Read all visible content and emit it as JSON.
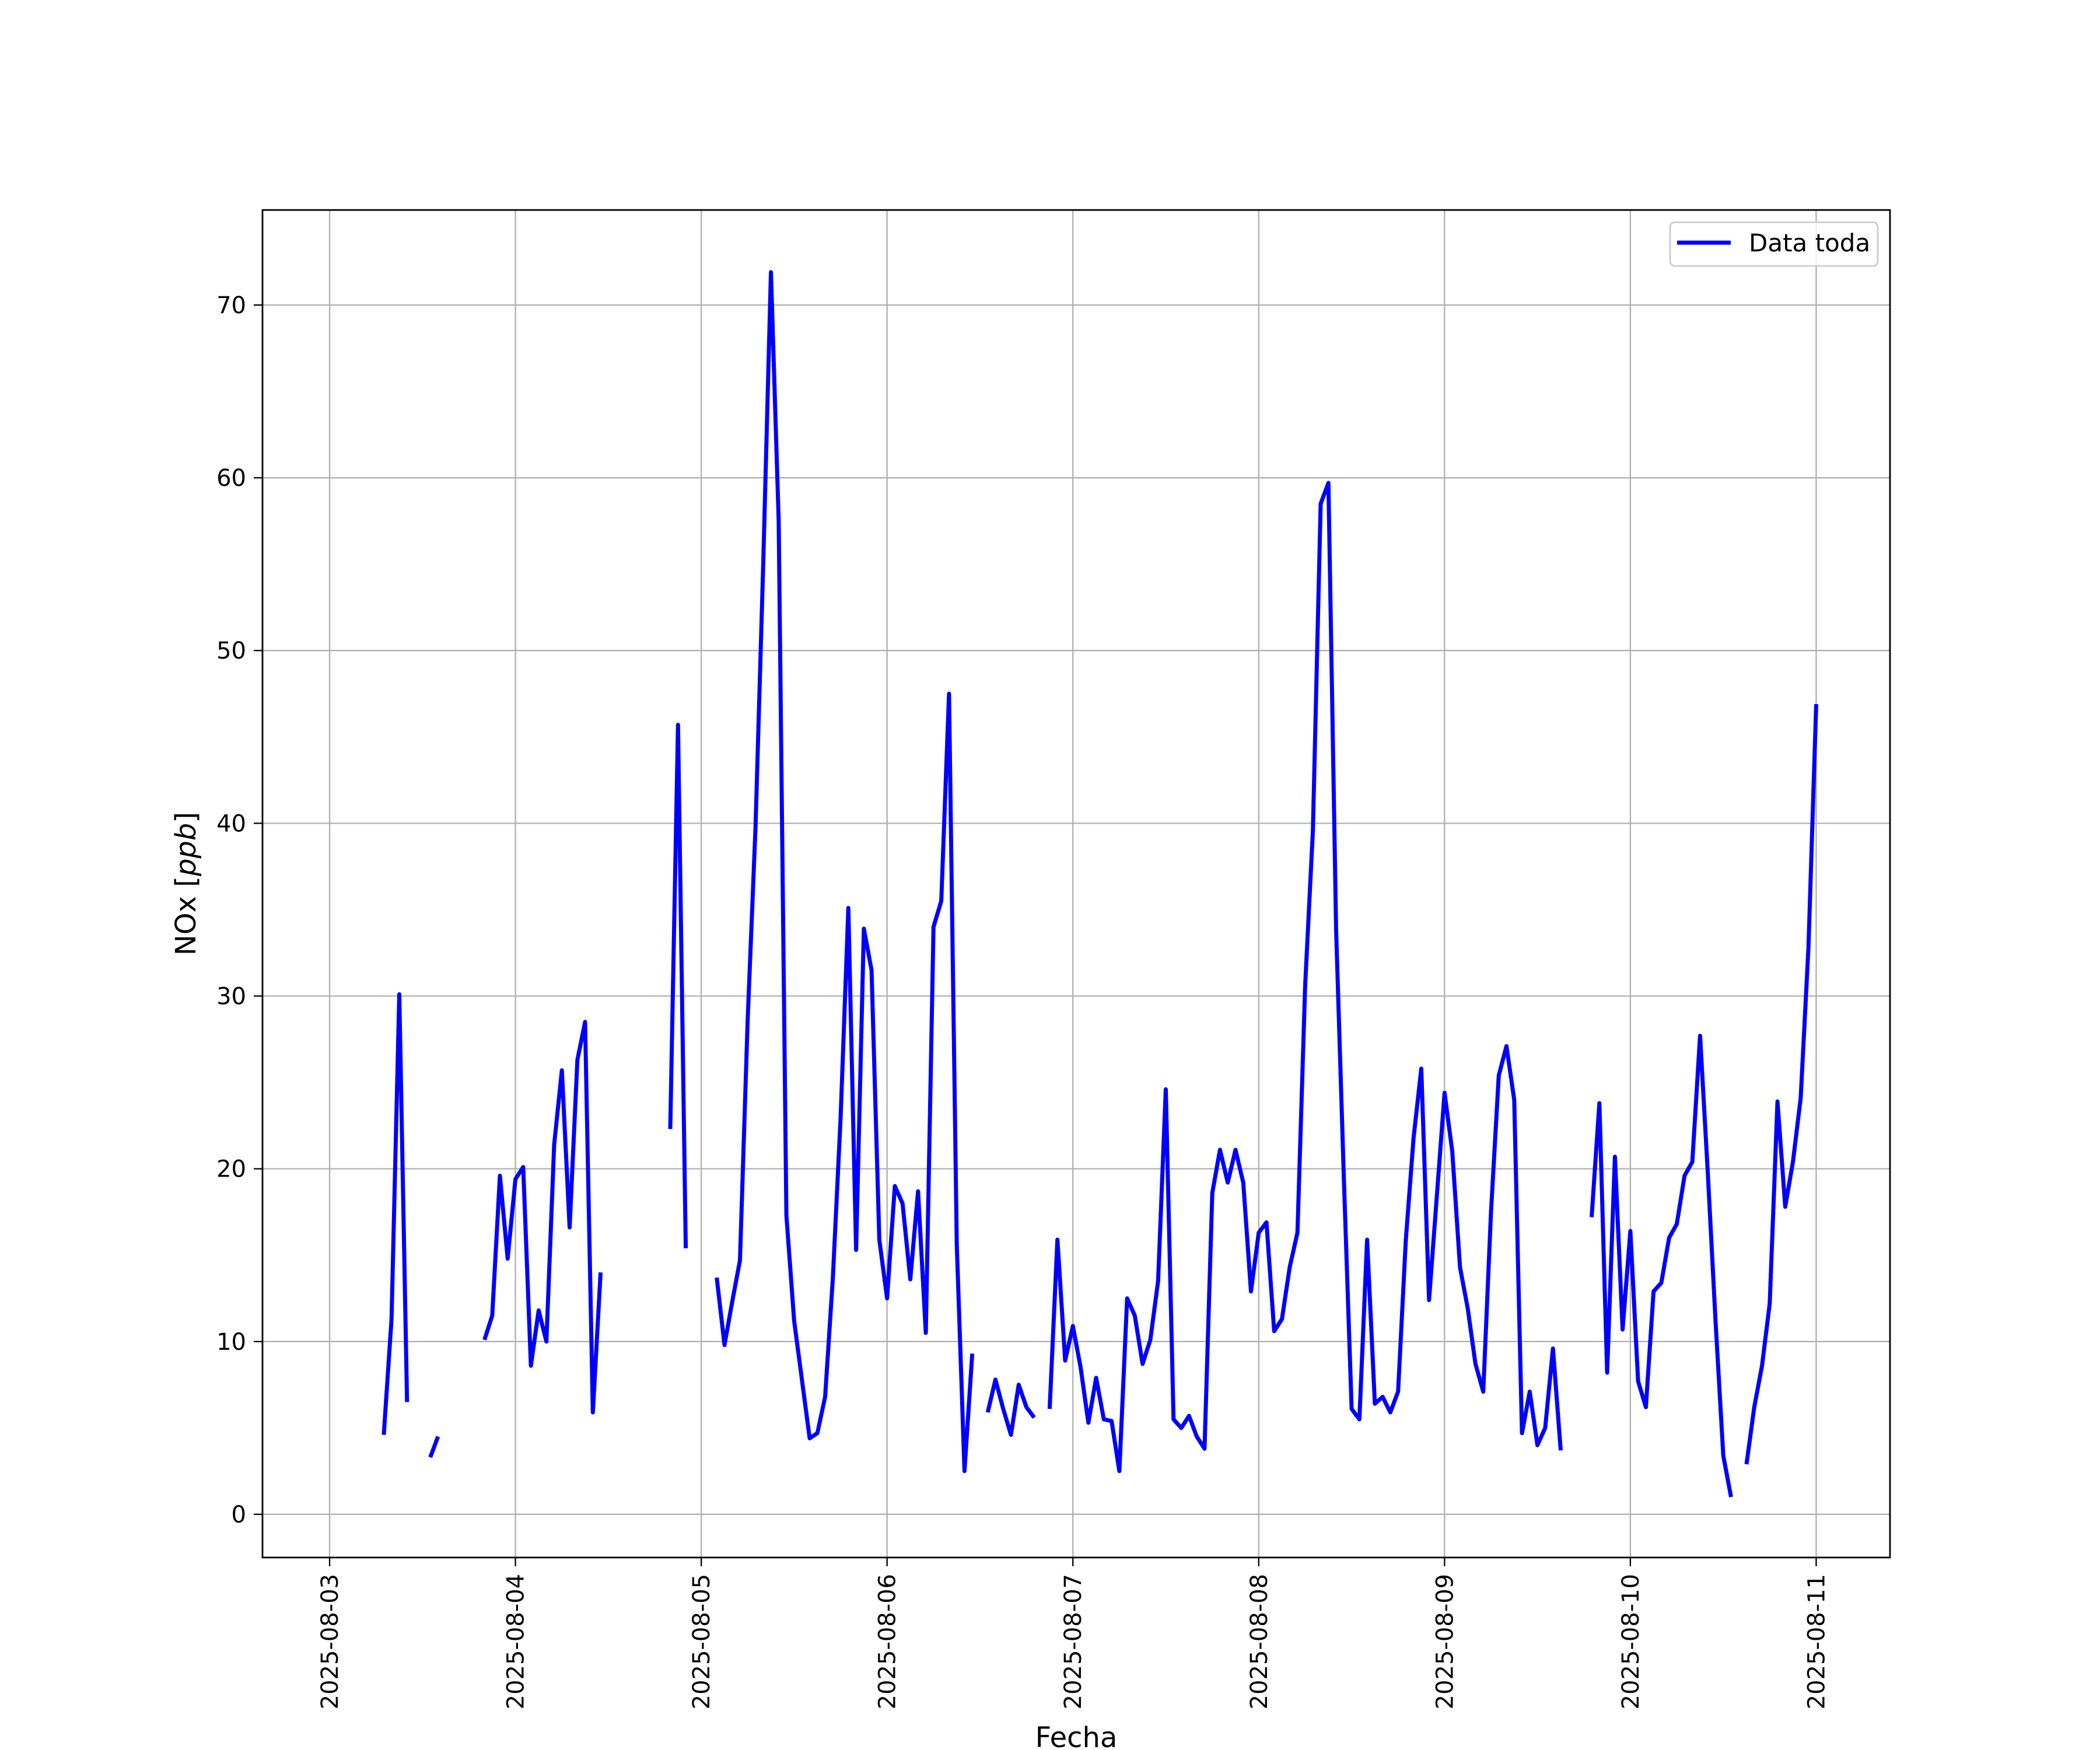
{
  "chart_data": {
    "type": "line",
    "xlabel": "Fecha",
    "ylabel": "NOx [ppb]",
    "ylim": [
      -2.5,
      75.5
    ],
    "xlim": [
      "2025-08-02 15:20",
      "2025-08-11 09:32"
    ],
    "grid": true,
    "legend_placement": "top-right",
    "y_ticks": [
      "0",
      "10",
      "20",
      "30",
      "40",
      "50",
      "60",
      "70"
    ],
    "x_ticks": [
      "2025-08-03",
      "2025-08-04",
      "2025-08-05",
      "2025-08-06",
      "2025-08-07",
      "2025-08-08",
      "2025-08-09",
      "2025-08-10",
      "2025-08-11"
    ],
    "series": [
      {
        "name": "Data toda",
        "color": "#0000ff",
        "points": [
          [
            "2025-08-03 07:00",
            4.6
          ],
          [
            "2025-08-03 08:00",
            11.3
          ],
          [
            "2025-08-03 09:00",
            30.1
          ],
          [
            "2025-08-03 10:00",
            6.5
          ],
          [
            "2025-08-03 13:00",
            3.3
          ],
          [
            "2025-08-03 14:00",
            4.5
          ],
          [
            "2025-08-03 20:00",
            10.1
          ],
          [
            "2025-08-03 21:00",
            11.5
          ],
          [
            "2025-08-03 22:00",
            19.6
          ],
          [
            "2025-08-03 23:00",
            14.8
          ],
          [
            "2025-08-04 00:00",
            19.4
          ],
          [
            "2025-08-04 01:00",
            20.1
          ],
          [
            "2025-08-04 02:00",
            8.6
          ],
          [
            "2025-08-04 03:00",
            11.8
          ],
          [
            "2025-08-04 04:00",
            10.0
          ],
          [
            "2025-08-04 05:00",
            21.4
          ],
          [
            "2025-08-04 06:00",
            25.7
          ],
          [
            "2025-08-04 07:00",
            16.6
          ],
          [
            "2025-08-04 08:00",
            26.3
          ],
          [
            "2025-08-04 09:00",
            28.5
          ],
          [
            "2025-08-04 10:00",
            5.9
          ],
          [
            "2025-08-04 11:00",
            14.0
          ],
          [
            "2025-08-04 20:00",
            22.3
          ],
          [
            "2025-08-04 21:00",
            45.7
          ],
          [
            "2025-08-04 22:00",
            15.4
          ],
          [
            "2025-08-05 02:00",
            13.7
          ],
          [
            "2025-08-05 03:00",
            9.8
          ],
          [
            "2025-08-05 04:00",
            12.3
          ],
          [
            "2025-08-05 05:00",
            14.7
          ],
          [
            "2025-08-05 06:00",
            28.7
          ],
          [
            "2025-08-05 07:00",
            39.7
          ],
          [
            "2025-08-05 08:00",
            54.9
          ],
          [
            "2025-08-05 09:00",
            71.9
          ],
          [
            "2025-08-05 10:00",
            57.5
          ],
          [
            "2025-08-05 11:00",
            17.3
          ],
          [
            "2025-08-05 12:00",
            11.2
          ],
          [
            "2025-08-05 13:00",
            7.8
          ],
          [
            "2025-08-05 14:00",
            4.4
          ],
          [
            "2025-08-05 15:00",
            4.7
          ],
          [
            "2025-08-05 16:00",
            6.8
          ],
          [
            "2025-08-05 17:00",
            13.7
          ],
          [
            "2025-08-05 18:00",
            23.0
          ],
          [
            "2025-08-05 19:00",
            35.1
          ],
          [
            "2025-08-05 20:00",
            15.3
          ],
          [
            "2025-08-05 21:00",
            33.9
          ],
          [
            "2025-08-05 22:00",
            31.5
          ],
          [
            "2025-08-05 23:00",
            15.9
          ],
          [
            "2025-08-06 00:00",
            12.5
          ],
          [
            "2025-08-06 01:00",
            19.0
          ],
          [
            "2025-08-06 02:00",
            18.0
          ],
          [
            "2025-08-06 03:00",
            13.6
          ],
          [
            "2025-08-06 04:00",
            18.7
          ],
          [
            "2025-08-06 05:00",
            10.5
          ],
          [
            "2025-08-06 06:00",
            34.0
          ],
          [
            "2025-08-06 07:00",
            35.5
          ],
          [
            "2025-08-06 08:00",
            47.5
          ],
          [
            "2025-08-06 09:00",
            15.6
          ],
          [
            "2025-08-06 10:00",
            2.5
          ],
          [
            "2025-08-06 11:00",
            9.3
          ],
          [
            "2025-08-06 13:00",
            5.9
          ],
          [
            "2025-08-06 14:00",
            7.8
          ],
          [
            "2025-08-06 15:00",
            6.1
          ],
          [
            "2025-08-06 16:00",
            4.6
          ],
          [
            "2025-08-06 17:00",
            7.5
          ],
          [
            "2025-08-06 18:00",
            6.2
          ],
          [
            "2025-08-06 19:00",
            5.6
          ],
          [
            "2025-08-06 21:00",
            6.1
          ],
          [
            "2025-08-06 22:00",
            15.9
          ],
          [
            "2025-08-06 23:00",
            8.9
          ],
          [
            "2025-08-07 00:00",
            10.9
          ],
          [
            "2025-08-07 01:00",
            8.5
          ],
          [
            "2025-08-07 02:00",
            5.3
          ],
          [
            "2025-08-07 03:00",
            7.9
          ],
          [
            "2025-08-07 04:00",
            5.5
          ],
          [
            "2025-08-07 05:00",
            5.4
          ],
          [
            "2025-08-07 06:00",
            2.5
          ],
          [
            "2025-08-07 07:00",
            12.5
          ],
          [
            "2025-08-07 08:00",
            11.5
          ],
          [
            "2025-08-07 09:00",
            8.7
          ],
          [
            "2025-08-07 10:00",
            10.1
          ],
          [
            "2025-08-07 11:00",
            13.5
          ],
          [
            "2025-08-07 12:00",
            24.6
          ],
          [
            "2025-08-07 13:00",
            5.5
          ],
          [
            "2025-08-07 14:00",
            5.0
          ],
          [
            "2025-08-07 15:00",
            5.7
          ],
          [
            "2025-08-07 16:00",
            4.5
          ],
          [
            "2025-08-07 17:00",
            3.8
          ],
          [
            "2025-08-07 18:00",
            18.6
          ],
          [
            "2025-08-07 19:00",
            21.1
          ],
          [
            "2025-08-07 20:00",
            19.2
          ],
          [
            "2025-08-07 21:00",
            21.1
          ],
          [
            "2025-08-07 22:00",
            19.2
          ],
          [
            "2025-08-07 23:00",
            12.9
          ],
          [
            "2025-08-08 00:00",
            16.3
          ],
          [
            "2025-08-08 01:00",
            16.9
          ],
          [
            "2025-08-08 02:00",
            10.6
          ],
          [
            "2025-08-08 03:00",
            11.3
          ],
          [
            "2025-08-08 04:00",
            14.3
          ],
          [
            "2025-08-08 05:00",
            16.3
          ],
          [
            "2025-08-08 06:00",
            30.6
          ],
          [
            "2025-08-08 07:00",
            39.6
          ],
          [
            "2025-08-08 08:00",
            58.5
          ],
          [
            "2025-08-08 09:00",
            59.7
          ],
          [
            "2025-08-08 10:00",
            33.8
          ],
          [
            "2025-08-08 11:00",
            19.4
          ],
          [
            "2025-08-08 12:00",
            6.1
          ],
          [
            "2025-08-08 13:00",
            5.5
          ],
          [
            "2025-08-08 14:00",
            15.9
          ],
          [
            "2025-08-08 15:00",
            6.4
          ],
          [
            "2025-08-08 16:00",
            6.8
          ],
          [
            "2025-08-08 17:00",
            5.9
          ],
          [
            "2025-08-08 18:00",
            7.1
          ],
          [
            "2025-08-08 19:00",
            15.9
          ],
          [
            "2025-08-08 20:00",
            21.8
          ],
          [
            "2025-08-08 21:00",
            25.8
          ],
          [
            "2025-08-08 22:00",
            12.4
          ],
          [
            "2025-08-08 23:00",
            18.4
          ],
          [
            "2025-08-09 00:00",
            24.4
          ],
          [
            "2025-08-09 01:00",
            21.0
          ],
          [
            "2025-08-09 02:00",
            14.3
          ],
          [
            "2025-08-09 03:00",
            11.9
          ],
          [
            "2025-08-09 04:00",
            8.7
          ],
          [
            "2025-08-09 05:00",
            7.1
          ],
          [
            "2025-08-09 06:00",
            17.5
          ],
          [
            "2025-08-09 07:00",
            25.4
          ],
          [
            "2025-08-09 08:00",
            27.1
          ],
          [
            "2025-08-09 09:00",
            24.0
          ],
          [
            "2025-08-09 10:00",
            4.7
          ],
          [
            "2025-08-09 11:00",
            7.1
          ],
          [
            "2025-08-09 12:00",
            4.0
          ],
          [
            "2025-08-09 13:00",
            5.0
          ],
          [
            "2025-08-09 14:00",
            9.6
          ],
          [
            "2025-08-09 15:00",
            3.7
          ],
          [
            "2025-08-09 19:00",
            17.2
          ],
          [
            "2025-08-09 20:00",
            23.8
          ],
          [
            "2025-08-09 21:00",
            8.2
          ],
          [
            "2025-08-09 22:00",
            20.7
          ],
          [
            "2025-08-09 23:00",
            10.7
          ],
          [
            "2025-08-10 00:00",
            16.4
          ],
          [
            "2025-08-10 01:00",
            7.7
          ],
          [
            "2025-08-10 02:00",
            6.2
          ],
          [
            "2025-08-10 03:00",
            12.9
          ],
          [
            "2025-08-10 04:00",
            13.4
          ],
          [
            "2025-08-10 05:00",
            16.0
          ],
          [
            "2025-08-10 06:00",
            16.8
          ],
          [
            "2025-08-10 07:00",
            19.6
          ],
          [
            "2025-08-10 08:00",
            20.4
          ],
          [
            "2025-08-10 09:00",
            27.7
          ],
          [
            "2025-08-10 10:00",
            19.8
          ],
          [
            "2025-08-10 11:00",
            11.2
          ],
          [
            "2025-08-10 12:00",
            3.4
          ],
          [
            "2025-08-10 13:00",
            1.0
          ],
          [
            "2025-08-10 15:00",
            2.9
          ],
          [
            "2025-08-10 16:00",
            6.2
          ],
          [
            "2025-08-10 17:00",
            8.6
          ],
          [
            "2025-08-10 18:00",
            12.2
          ],
          [
            "2025-08-10 19:00",
            23.9
          ],
          [
            "2025-08-10 20:00",
            17.8
          ],
          [
            "2025-08-10 21:00",
            20.4
          ],
          [
            "2025-08-10 22:00",
            24.1
          ],
          [
            "2025-08-10 23:00",
            32.8
          ],
          [
            "2025-08-11 00:00",
            46.9
          ]
        ]
      }
    ]
  }
}
